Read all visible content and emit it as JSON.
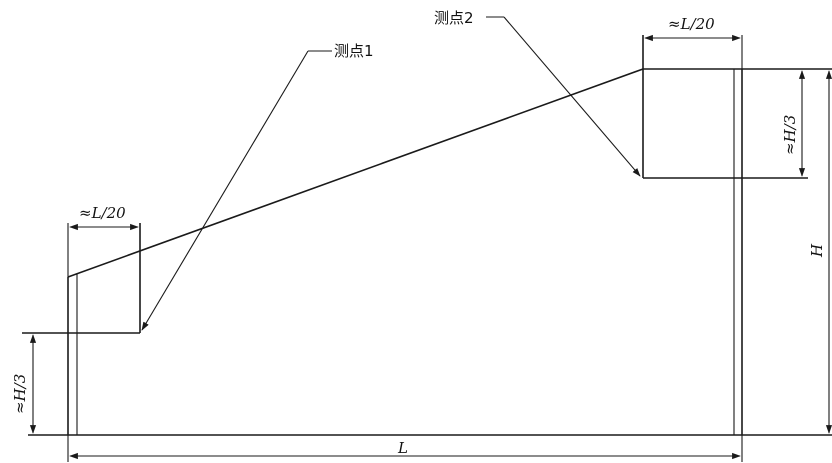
{
  "labels": {
    "point1": "测点1",
    "point2": "测点2",
    "width_left": "≈L/20",
    "width_right": "≈L/20",
    "height_left": "≈H/3",
    "height_right": "≈H/3",
    "total_height": "H",
    "total_length": "L"
  },
  "colors": {
    "line": "#1a1a1a",
    "background": "#ffffff"
  }
}
